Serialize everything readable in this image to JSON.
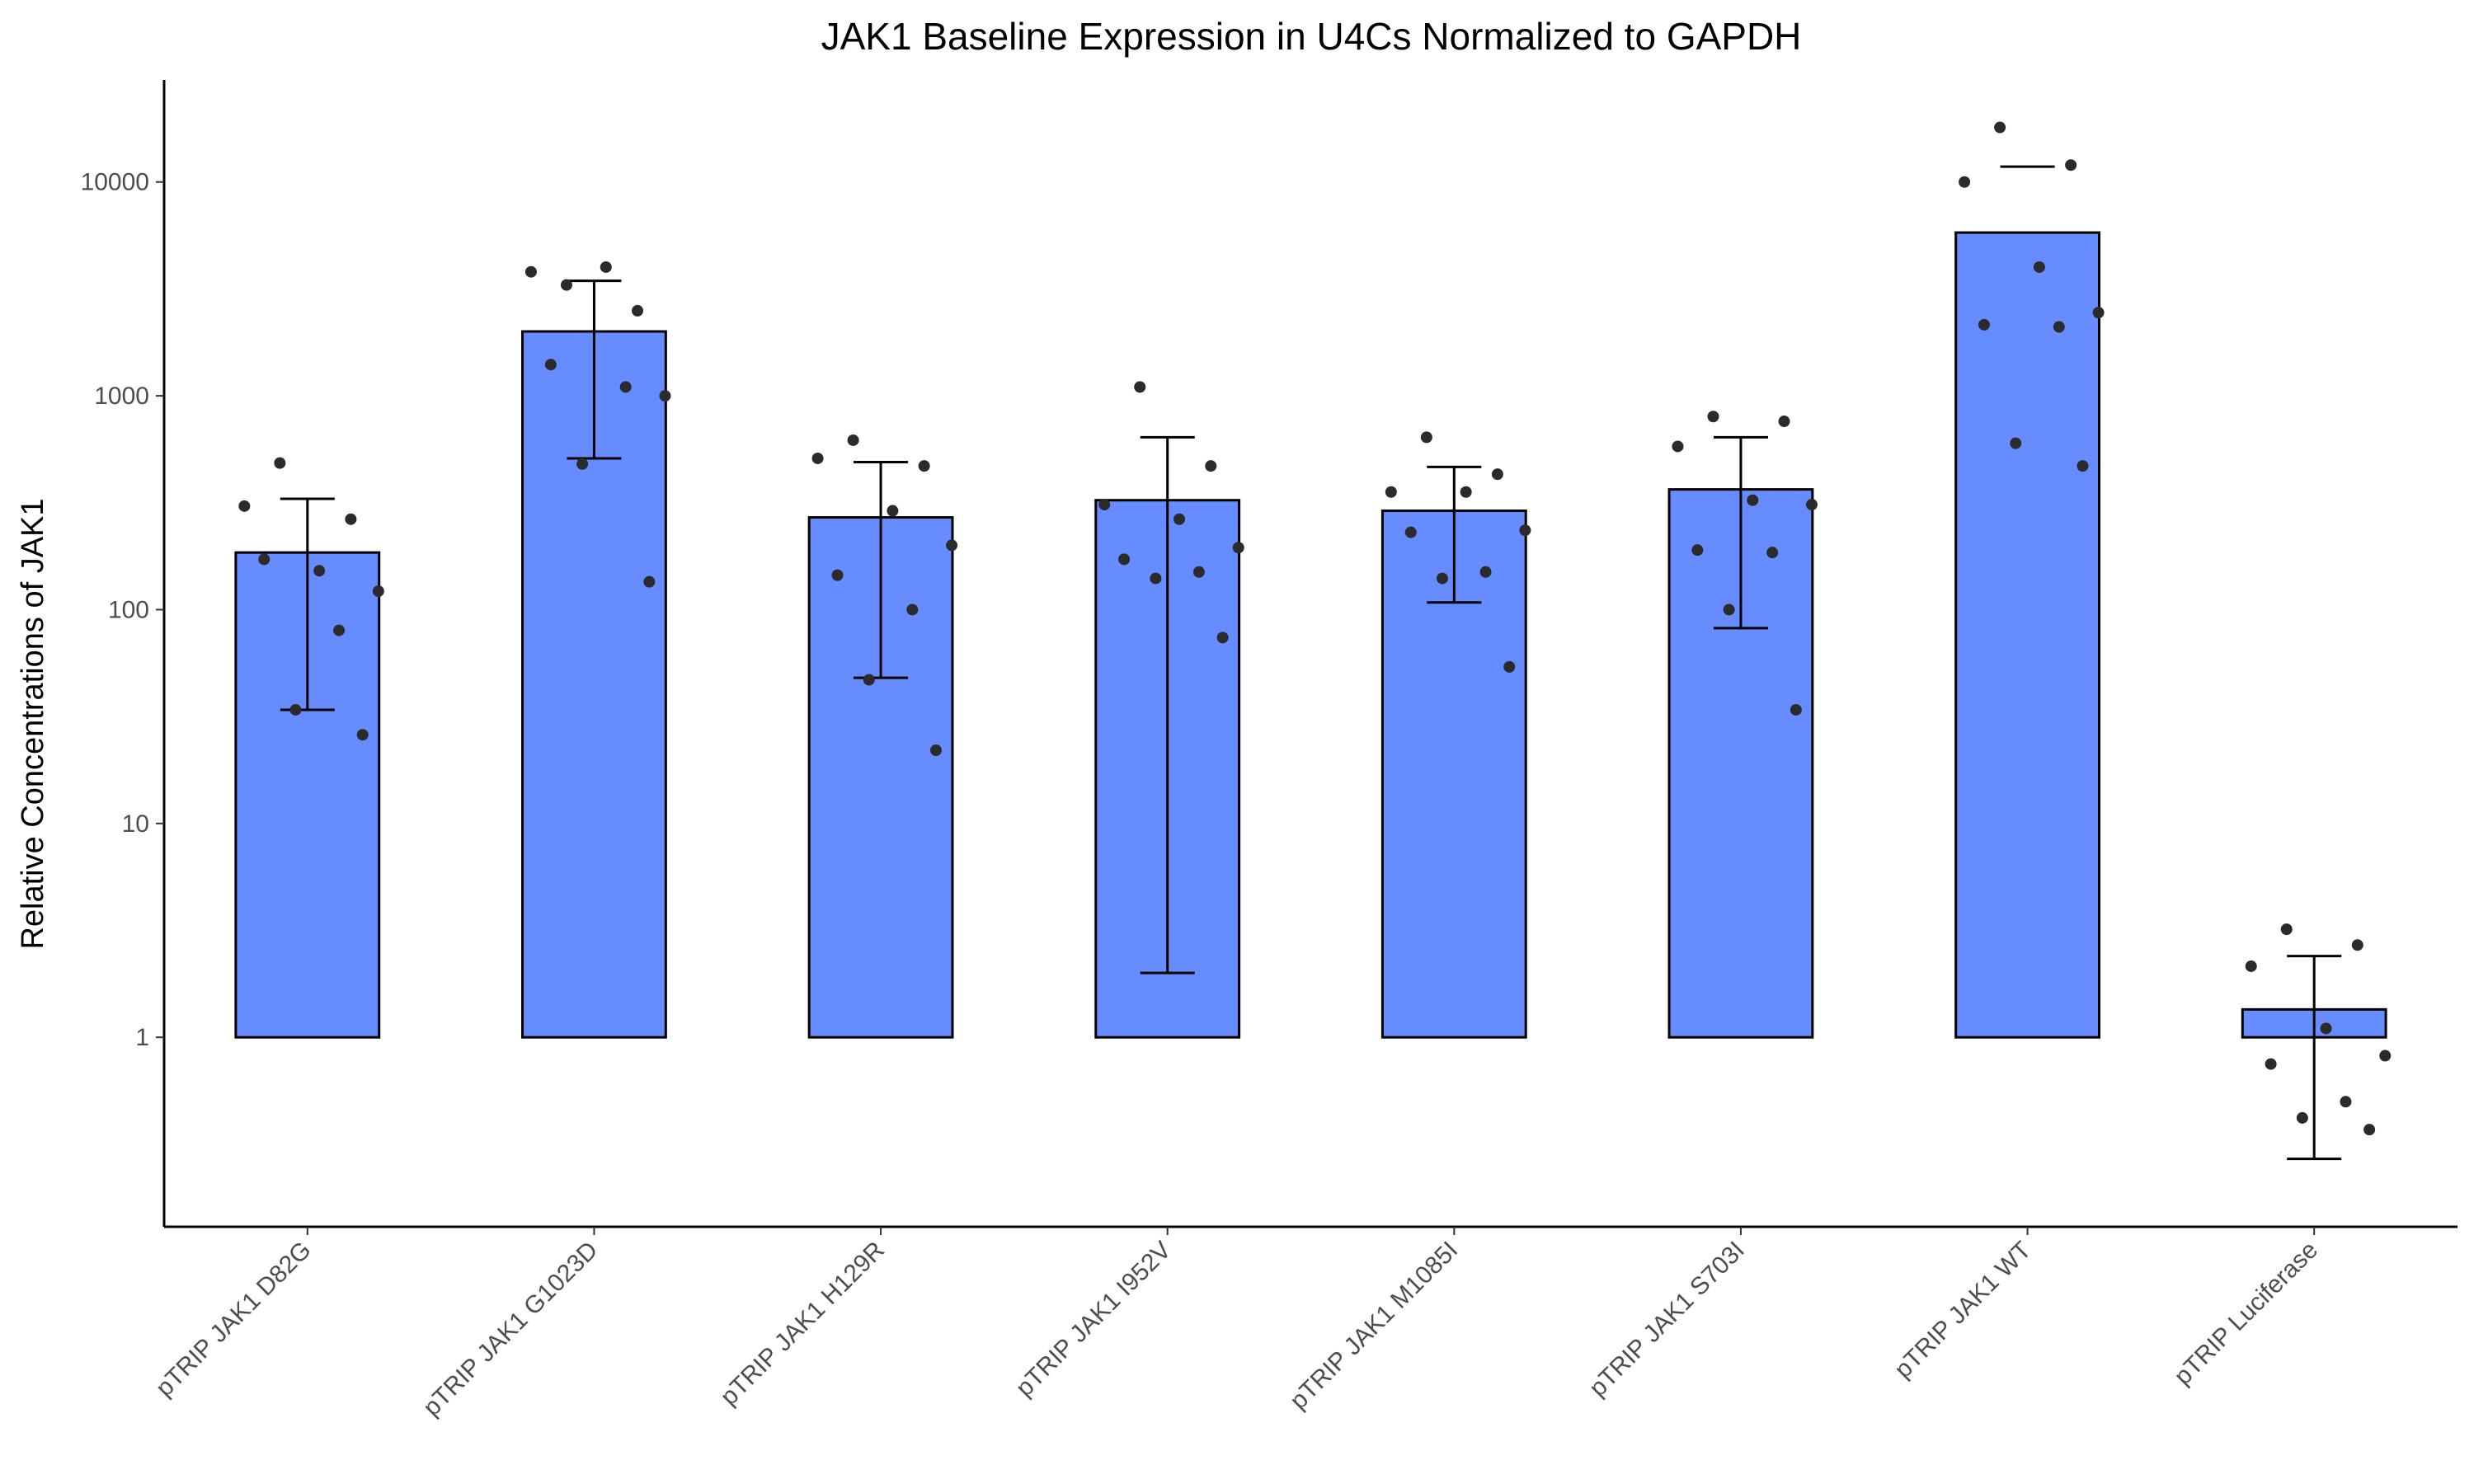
{
  "chart_data": {
    "type": "bar",
    "title": "JAK1 Baseline Expression in U4Cs Normalized to GAPDH",
    "xlabel": "",
    "ylabel": "Relative Concentrations of JAK1",
    "y_scale": "log10",
    "ylim": [
      0.13,
      30000
    ],
    "y_ticks": [
      1,
      10,
      100,
      1000,
      10000
    ],
    "y_tick_labels": [
      "1",
      "10",
      "100",
      "1000",
      "10000"
    ],
    "bar_color": "#668cff",
    "grid": false,
    "legend": "none",
    "categories": [
      "pTRIP JAK1 D82G",
      "pTRIP JAK1 G1023D",
      "pTRIP JAK1 H129R",
      "pTRIP JAK1 I952V",
      "pTRIP JAK1 M1085I",
      "pTRIP JAK1 S703I",
      "pTRIP JAK1 WT",
      "pTRIP Luciferase"
    ],
    "values": [
      185,
      2000,
      270,
      325,
      290,
      365,
      5800,
      1.35
    ],
    "error_low": [
      34,
      510,
      48,
      2,
      108,
      82,
      null,
      0.27
    ],
    "error_high": [
      330,
      3450,
      490,
      640,
      465,
      640,
      11800,
      2.4
    ],
    "points": [
      [
        485,
        265,
        305,
        152,
        122,
        172,
        80,
        34,
        26
      ],
      [
        3300,
        2500,
        3800,
        4000,
        1000,
        1400,
        1100,
        480,
        135
      ],
      [
        620,
        470,
        510,
        290,
        200,
        145,
        100,
        47,
        22
      ],
      [
        1100,
        470,
        310,
        265,
        195,
        172,
        150,
        140,
        74
      ],
      [
        640,
        430,
        355,
        355,
        235,
        230,
        150,
        140,
        54
      ],
      [
        800,
        760,
        580,
        325,
        310,
        190,
        185,
        100,
        34
      ],
      [
        18000,
        12000,
        10000,
        4000,
        2450,
        2150,
        2100,
        600,
        470
      ],
      [
        3.2,
        2.7,
        2.15,
        1.1,
        0.82,
        0.75,
        0.5,
        0.42,
        0.37
      ]
    ]
  }
}
